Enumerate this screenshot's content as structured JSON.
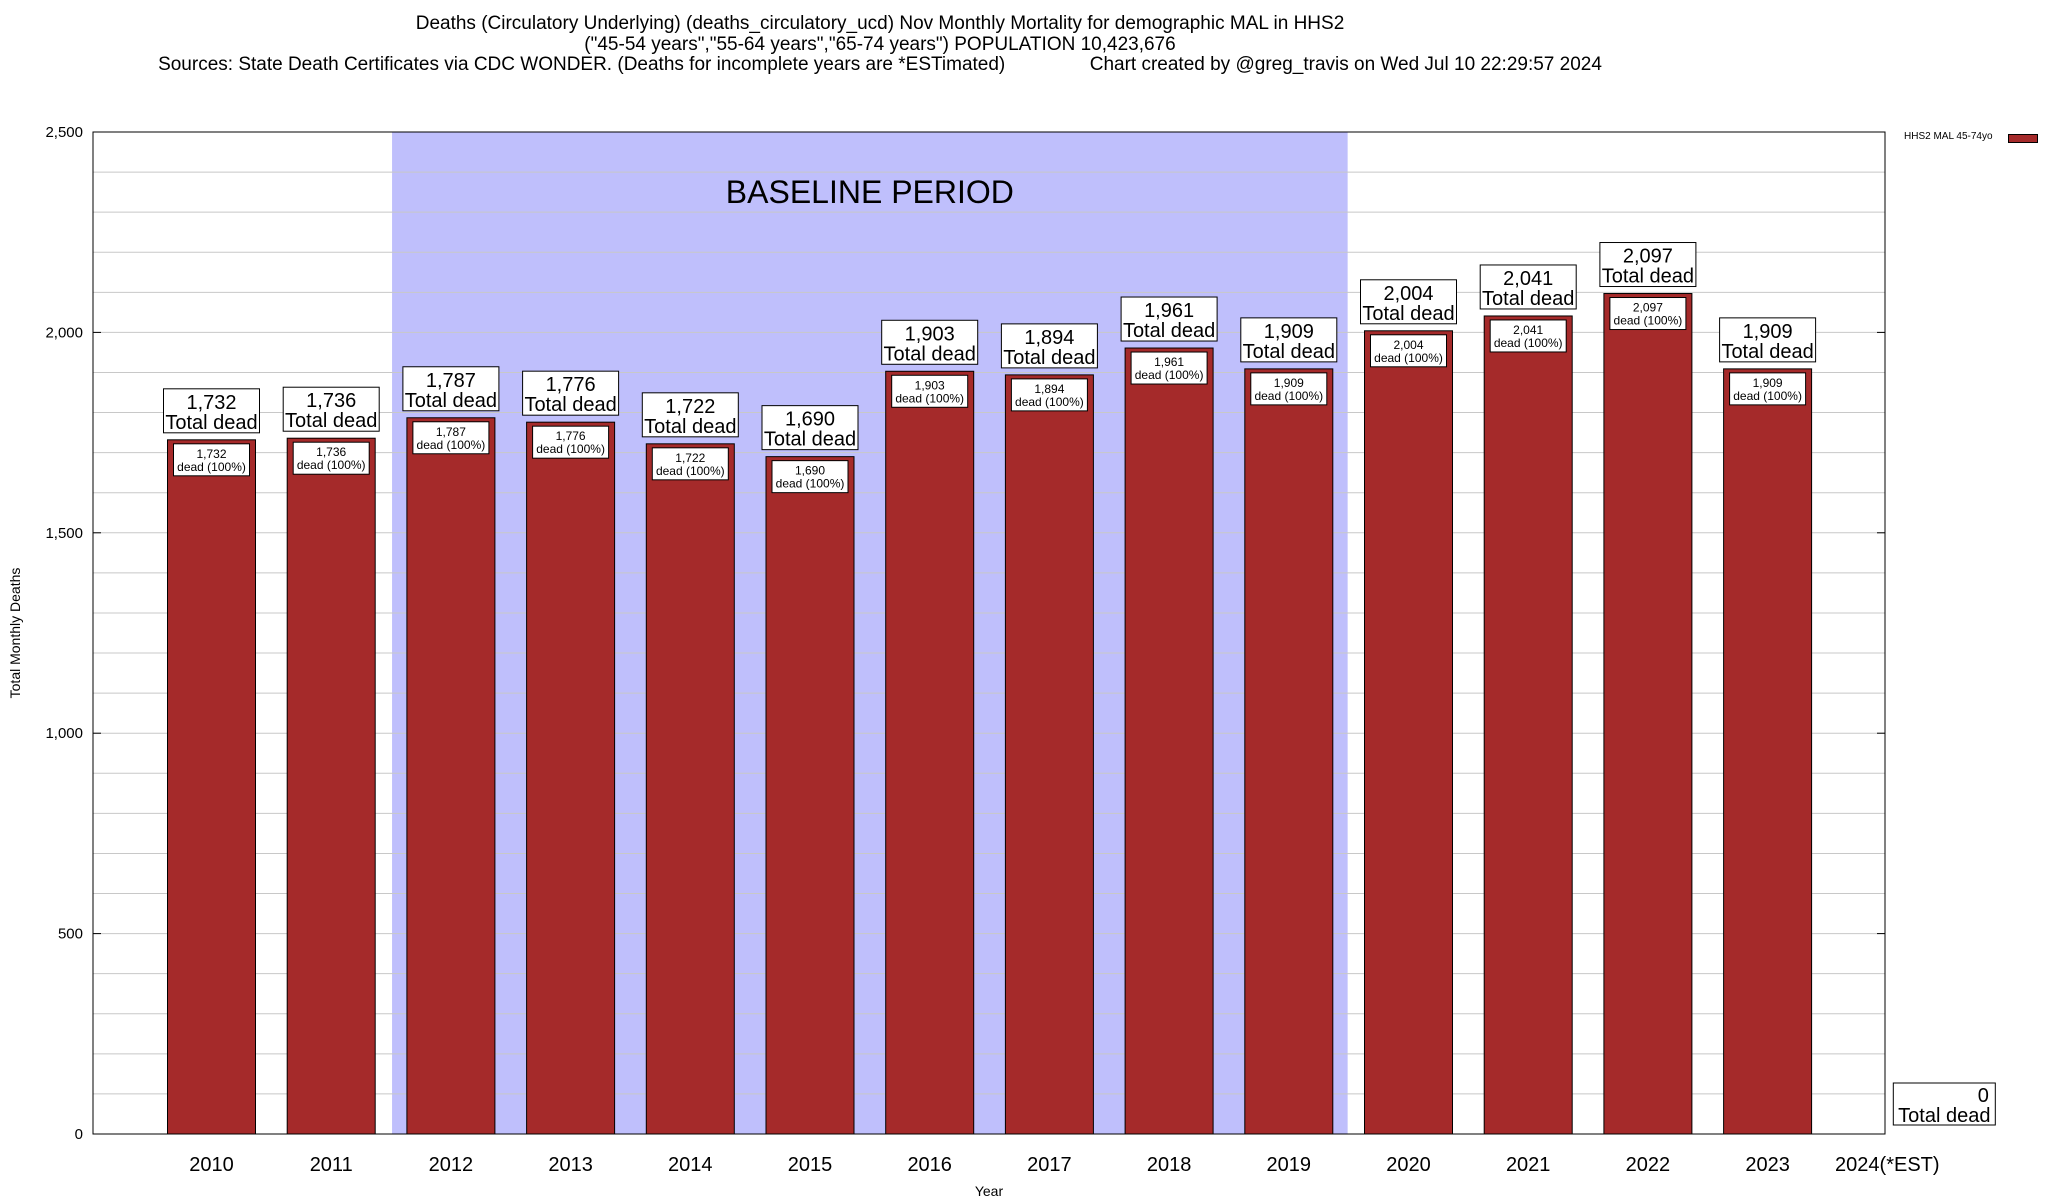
{
  "title_lines": [
    "Deaths (Circulatory Underlying) (deaths_circulatory_ucd) Nov Monthly Mortality for demographic MAL in HHS2",
    "(\"45-54 years\",\"55-64 years\",\"65-74 years\") POPULATION 10,423,676",
    "Sources: State Death Certificates via CDC WONDER. (Deaths for incomplete years are *ESTimated)                Chart created by @greg_travis on Wed Jul 10 22:29:57 2024"
  ],
  "legend_label": "HHS2 MAL 45-74yo",
  "colors": {
    "bar": "#a52a2a",
    "baseline_band": "#bfbffc",
    "grid": "#c8c8c8"
  },
  "chart_data": {
    "type": "bar",
    "xlabel": "Year",
    "ylabel": "Total Monthly Deaths",
    "ylim": [
      0,
      2500
    ],
    "y_ticks": [
      0,
      500,
      1000,
      1500,
      2000,
      2500
    ],
    "y_tick_labels": [
      "0",
      "500",
      "1,000",
      "1,500",
      "2,000",
      "2,500"
    ],
    "grid": true,
    "legend_position": "top-right",
    "baseline": {
      "label": "BASELINE PERIOD",
      "start": "2012",
      "end": "2019"
    },
    "categories": [
      "2010",
      "2011",
      "2012",
      "2013",
      "2014",
      "2015",
      "2016",
      "2017",
      "2018",
      "2019",
      "2020",
      "2021",
      "2022",
      "2023",
      "2024(*EST)"
    ],
    "series": [
      {
        "name": "HHS2 MAL 45-74yo",
        "values": [
          1732,
          1736,
          1787,
          1776,
          1722,
          1690,
          1903,
          1894,
          1961,
          1909,
          2004,
          2041,
          2097,
          1909,
          0
        ],
        "value_labels": [
          "1,732",
          "1,736",
          "1,787",
          "1,776",
          "1,722",
          "1,690",
          "1,903",
          "1,894",
          "1,961",
          "1,909",
          "2,004",
          "2,041",
          "2,097",
          "1,909",
          "0"
        ]
      }
    ],
    "total_label_suffix": "Total dead",
    "inner_label_suffix": "dead (100%)"
  }
}
